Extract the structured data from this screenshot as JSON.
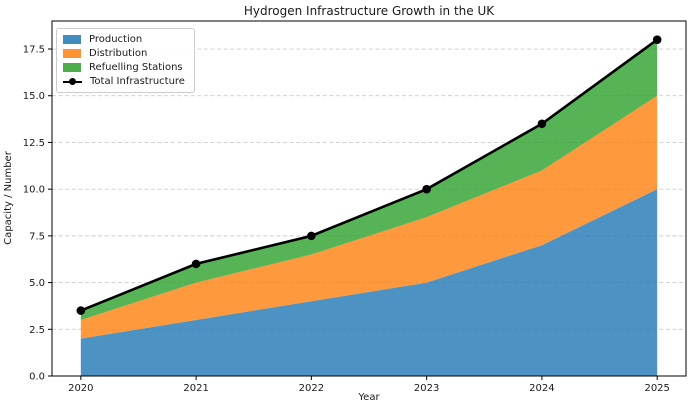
{
  "chart_data": {
    "type": "area",
    "stacked": true,
    "title": "Hydrogen Infrastructure Growth in the UK",
    "xlabel": "Year",
    "ylabel": "Capacity / Number",
    "categories": [
      2020,
      2021,
      2022,
      2023,
      2024,
      2025
    ],
    "series": [
      {
        "name": "Production",
        "values": [
          2.0,
          3.0,
          4.0,
          5.0,
          7.0,
          10.0
        ],
        "color": "#1f77b4"
      },
      {
        "name": "Distribution",
        "values": [
          1.0,
          2.0,
          2.5,
          3.5,
          4.0,
          5.0
        ],
        "color": "#ff7f0e"
      },
      {
        "name": "Refuelling Stations",
        "values": [
          0.5,
          1.0,
          1.0,
          1.5,
          2.5,
          3.0
        ],
        "color": "#2ca02c"
      }
    ],
    "total_line": {
      "name": "Total Infrastructure",
      "values": [
        3.5,
        6.0,
        7.5,
        10.0,
        13.5,
        18.0
      ],
      "color": "#000000",
      "marker": "circle"
    },
    "yticks": [
      0,
      2.5,
      5,
      7.5,
      10,
      12.5,
      15,
      17.5
    ],
    "ylim": [
      0,
      19
    ],
    "xlim": [
      2019.75,
      2025.25
    ],
    "grid": "horizontal-dashed",
    "grid_color": "#cccccc",
    "fill_opacity": 0.8,
    "legend_position": "upper-left",
    "spine_color": "#000000",
    "tick_label_color": "#1a1a1a"
  }
}
